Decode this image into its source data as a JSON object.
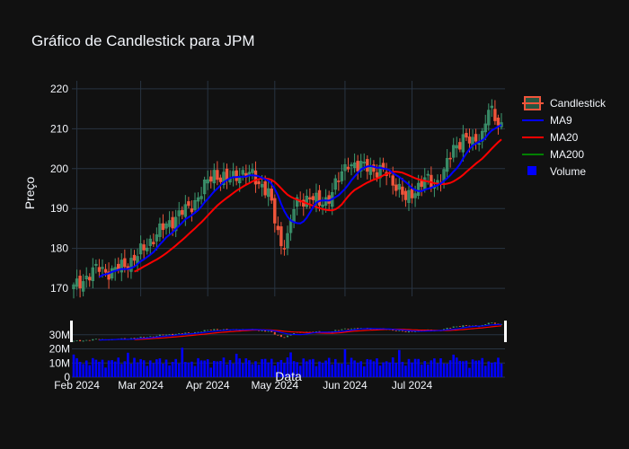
{
  "chart_data": {
    "type": "candlestick",
    "title": "Gráfico de Candlestick para JPM",
    "xlabel": "Data",
    "ylabel": "Preço",
    "ylim": [
      168,
      222
    ],
    "yticks": [
      170,
      180,
      190,
      200,
      210,
      220
    ],
    "xticks": [
      "Feb 2024",
      "Mar 2024",
      "Apr 2024",
      "May 2024",
      "Jun 2024",
      "Jul 2024"
    ],
    "volume_ticks": [
      "0",
      "10M",
      "20M",
      "30M"
    ],
    "volume_ylim": [
      0,
      40
    ],
    "legend": [
      {
        "name": "Candlestick",
        "color": "#ef553b"
      },
      {
        "name": "MA9",
        "color": "#0000ff"
      },
      {
        "name": "MA20",
        "color": "#ff0000"
      },
      {
        "name": "MA200",
        "color": "#008000"
      },
      {
        "name": "Volume",
        "color": "#0000ff"
      }
    ],
    "colors": {
      "up": "#3d9970",
      "down": "#ef553b",
      "ma9": "#0000ff",
      "ma20": "#ff0000",
      "volume": "#0000ff",
      "grid": "#283442"
    },
    "anchors": [
      [
        0,
        170
      ],
      [
        4,
        173
      ],
      [
        8,
        175
      ],
      [
        12,
        174
      ],
      [
        16,
        176
      ],
      [
        20,
        178
      ],
      [
        24,
        182
      ],
      [
        28,
        185
      ],
      [
        32,
        188
      ],
      [
        36,
        190
      ],
      [
        40,
        194
      ],
      [
        44,
        199
      ],
      [
        48,
        197
      ],
      [
        52,
        199
      ],
      [
        56,
        198
      ],
      [
        59,
        196
      ],
      [
        61,
        194
      ],
      [
        63,
        187
      ],
      [
        65,
        181
      ],
      [
        67,
        183
      ],
      [
        69,
        190
      ],
      [
        71,
        192
      ],
      [
        74,
        193
      ],
      [
        77,
        191
      ],
      [
        80,
        193
      ],
      [
        83,
        197
      ],
      [
        86,
        202
      ],
      [
        89,
        200
      ],
      [
        92,
        201
      ],
      [
        95,
        199
      ],
      [
        98,
        199
      ],
      [
        101,
        196
      ],
      [
        104,
        192
      ],
      [
        107,
        195
      ],
      [
        110,
        197
      ],
      [
        113,
        196
      ],
      [
        116,
        199
      ],
      [
        119,
        205
      ],
      [
        122,
        208
      ],
      [
        125,
        206
      ],
      [
        128,
        209
      ],
      [
        130,
        215
      ],
      [
        132,
        212
      ],
      [
        134,
        211
      ]
    ]
  }
}
